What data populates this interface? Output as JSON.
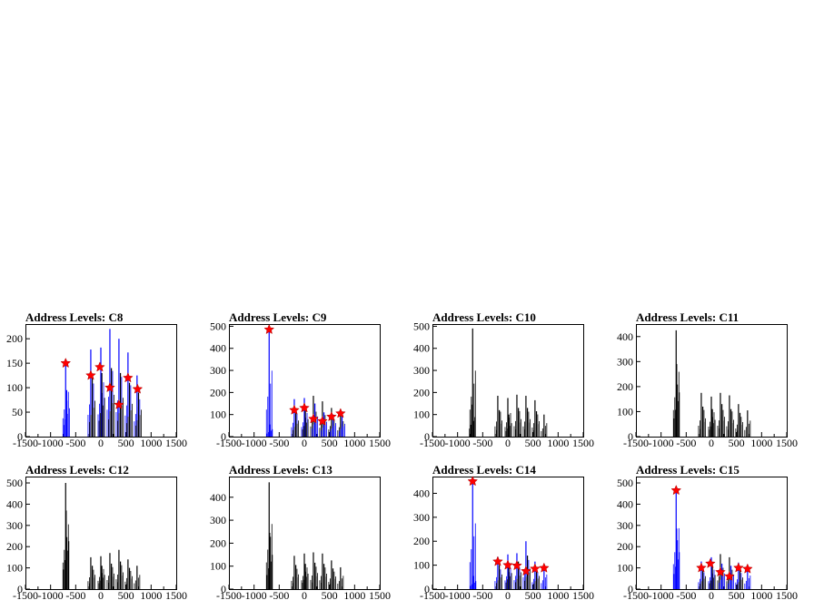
{
  "window": {
    "background": "#ffffff"
  },
  "colors": {
    "blue": "#0000ff",
    "black": "#000000",
    "marker": "#ff0000"
  },
  "x_axis": {
    "range": [
      -1500,
      1500
    ],
    "ticks": [
      -1500,
      -1000,
      -500,
      0,
      500,
      1000,
      1500
    ],
    "tick_labels": [
      "-1500",
      "-1000",
      "-500",
      "0",
      "500",
      "1000",
      "1500"
    ]
  },
  "chart_data": [
    {
      "type": "histogram",
      "title": "Address Levels: C8",
      "xlim": [
        -1500,
        1500
      ],
      "ylim": [
        0,
        230
      ],
      "yticks": [
        0,
        50,
        100,
        150,
        200
      ],
      "peaks": [
        {
          "x": -700,
          "y": 150,
          "color": "blue"
        },
        {
          "x": -680,
          "y": 95,
          "color": "blue"
        },
        {
          "x": -200,
          "y": 178,
          "color": "blue"
        },
        {
          "x": -170,
          "y": 120,
          "color": "black"
        },
        {
          "x": 0,
          "y": 182,
          "color": "blue"
        },
        {
          "x": 20,
          "y": 130,
          "color": "black"
        },
        {
          "x": 180,
          "y": 220,
          "color": "blue"
        },
        {
          "x": 210,
          "y": 140,
          "color": "black"
        },
        {
          "x": 360,
          "y": 200,
          "color": "blue"
        },
        {
          "x": 390,
          "y": 130,
          "color": "black"
        },
        {
          "x": 540,
          "y": 172,
          "color": "blue"
        },
        {
          "x": 570,
          "y": 110,
          "color": "black"
        },
        {
          "x": 720,
          "y": 125,
          "color": "blue"
        },
        {
          "x": 750,
          "y": 90,
          "color": "black"
        }
      ],
      "markers": [
        {
          "x": -700,
          "y": 150
        },
        {
          "x": -200,
          "y": 125
        },
        {
          "x": -20,
          "y": 142
        },
        {
          "x": 180,
          "y": 100
        },
        {
          "x": 360,
          "y": 65
        },
        {
          "x": 540,
          "y": 120
        },
        {
          "x": 730,
          "y": 97
        }
      ]
    },
    {
      "type": "histogram",
      "title": "Address Levels: C9",
      "xlim": [
        -1500,
        1500
      ],
      "ylim": [
        0,
        510
      ],
      "yticks": [
        0,
        100,
        200,
        300,
        400,
        500
      ],
      "peaks": [
        {
          "x": -700,
          "y": 490,
          "color": "blue"
        },
        {
          "x": -690,
          "y": 55,
          "color": "blue"
        },
        {
          "x": -200,
          "y": 170,
          "color": "blue"
        },
        {
          "x": -170,
          "y": 120,
          "color": "black"
        },
        {
          "x": 0,
          "y": 175,
          "color": "blue"
        },
        {
          "x": 20,
          "y": 130,
          "color": "black"
        },
        {
          "x": 180,
          "y": 185,
          "color": "black"
        },
        {
          "x": 210,
          "y": 150,
          "color": "blue"
        },
        {
          "x": 360,
          "y": 160,
          "color": "black"
        },
        {
          "x": 390,
          "y": 110,
          "color": "blue"
        },
        {
          "x": 540,
          "y": 130,
          "color": "black"
        },
        {
          "x": 570,
          "y": 100,
          "color": "blue"
        },
        {
          "x": 720,
          "y": 115,
          "color": "black"
        },
        {
          "x": 750,
          "y": 95,
          "color": "blue"
        }
      ],
      "markers": [
        {
          "x": -700,
          "y": 485
        },
        {
          "x": -200,
          "y": 120
        },
        {
          "x": 0,
          "y": 130
        },
        {
          "x": 180,
          "y": 80
        },
        {
          "x": 360,
          "y": 70
        },
        {
          "x": 540,
          "y": 90
        },
        {
          "x": 720,
          "y": 105
        }
      ]
    },
    {
      "type": "histogram",
      "title": "Address Levels: C10",
      "xlim": [
        -1500,
        1500
      ],
      "ylim": [
        0,
        510
      ],
      "yticks": [
        0,
        100,
        200,
        300,
        400,
        500
      ],
      "peaks": [
        {
          "x": -700,
          "y": 490,
          "color": "black"
        },
        {
          "x": -710,
          "y": 145,
          "color": "black"
        },
        {
          "x": -200,
          "y": 185,
          "color": "black"
        },
        {
          "x": -170,
          "y": 120,
          "color": "black"
        },
        {
          "x": 0,
          "y": 175,
          "color": "black"
        },
        {
          "x": 20,
          "y": 100,
          "color": "black"
        },
        {
          "x": 180,
          "y": 190,
          "color": "black"
        },
        {
          "x": 210,
          "y": 130,
          "color": "black"
        },
        {
          "x": 360,
          "y": 185,
          "color": "black"
        },
        {
          "x": 390,
          "y": 130,
          "color": "black"
        },
        {
          "x": 540,
          "y": 165,
          "color": "black"
        },
        {
          "x": 570,
          "y": 115,
          "color": "black"
        },
        {
          "x": 720,
          "y": 100,
          "color": "black"
        }
      ],
      "markers": []
    },
    {
      "type": "histogram",
      "title": "Address Levels: C11",
      "xlim": [
        -1500,
        1500
      ],
      "ylim": [
        0,
        450
      ],
      "yticks": [
        0,
        100,
        200,
        300,
        400
      ],
      "peaks": [
        {
          "x": -700,
          "y": 425,
          "color": "black"
        },
        {
          "x": -690,
          "y": 290,
          "color": "black"
        },
        {
          "x": -200,
          "y": 175,
          "color": "black"
        },
        {
          "x": -170,
          "y": 120,
          "color": "black"
        },
        {
          "x": 0,
          "y": 160,
          "color": "black"
        },
        {
          "x": 20,
          "y": 110,
          "color": "black"
        },
        {
          "x": 180,
          "y": 175,
          "color": "black"
        },
        {
          "x": 210,
          "y": 130,
          "color": "black"
        },
        {
          "x": 360,
          "y": 165,
          "color": "black"
        },
        {
          "x": 390,
          "y": 110,
          "color": "black"
        },
        {
          "x": 540,
          "y": 130,
          "color": "black"
        },
        {
          "x": 570,
          "y": 95,
          "color": "black"
        },
        {
          "x": 720,
          "y": 105,
          "color": "black"
        }
      ],
      "markers": []
    },
    {
      "type": "histogram",
      "title": "Address Levels: C12",
      "xlim": [
        -1500,
        1500
      ],
      "ylim": [
        0,
        530
      ],
      "yticks": [
        0,
        100,
        200,
        300,
        400,
        500
      ],
      "peaks": [
        {
          "x": -700,
          "y": 500,
          "color": "black"
        },
        {
          "x": -690,
          "y": 370,
          "color": "black"
        },
        {
          "x": -200,
          "y": 150,
          "color": "black"
        },
        {
          "x": -170,
          "y": 110,
          "color": "black"
        },
        {
          "x": 0,
          "y": 155,
          "color": "black"
        },
        {
          "x": 20,
          "y": 110,
          "color": "black"
        },
        {
          "x": 180,
          "y": 170,
          "color": "black"
        },
        {
          "x": 210,
          "y": 120,
          "color": "black"
        },
        {
          "x": 360,
          "y": 185,
          "color": "black"
        },
        {
          "x": 390,
          "y": 130,
          "color": "black"
        },
        {
          "x": 540,
          "y": 140,
          "color": "black"
        },
        {
          "x": 570,
          "y": 100,
          "color": "black"
        },
        {
          "x": 720,
          "y": 110,
          "color": "black"
        }
      ],
      "markers": []
    },
    {
      "type": "histogram",
      "title": "Address Levels: C13",
      "xlim": [
        -1500,
        1500
      ],
      "ylim": [
        0,
        490
      ],
      "yticks": [
        0,
        100,
        200,
        300,
        400
      ],
      "peaks": [
        {
          "x": -700,
          "y": 465,
          "color": "black"
        },
        {
          "x": -690,
          "y": 245,
          "color": "black"
        },
        {
          "x": -200,
          "y": 145,
          "color": "black"
        },
        {
          "x": -170,
          "y": 105,
          "color": "black"
        },
        {
          "x": 0,
          "y": 155,
          "color": "black"
        },
        {
          "x": 20,
          "y": 110,
          "color": "black"
        },
        {
          "x": 180,
          "y": 160,
          "color": "black"
        },
        {
          "x": 210,
          "y": 115,
          "color": "black"
        },
        {
          "x": 360,
          "y": 155,
          "color": "black"
        },
        {
          "x": 390,
          "y": 110,
          "color": "black"
        },
        {
          "x": 540,
          "y": 125,
          "color": "black"
        },
        {
          "x": 570,
          "y": 90,
          "color": "black"
        },
        {
          "x": 720,
          "y": 95,
          "color": "black"
        }
      ],
      "markers": []
    },
    {
      "type": "histogram",
      "title": "Address Levels: C14",
      "xlim": [
        -1500,
        1500
      ],
      "ylim": [
        0,
        470
      ],
      "yticks": [
        0,
        100,
        200,
        300,
        400
      ],
      "peaks": [
        {
          "x": -700,
          "y": 450,
          "color": "blue"
        },
        {
          "x": -690,
          "y": 55,
          "color": "blue"
        },
        {
          "x": -200,
          "y": 135,
          "color": "blue"
        },
        {
          "x": -170,
          "y": 100,
          "color": "black"
        },
        {
          "x": 0,
          "y": 145,
          "color": "blue"
        },
        {
          "x": 20,
          "y": 110,
          "color": "black"
        },
        {
          "x": 180,
          "y": 150,
          "color": "blue"
        },
        {
          "x": 210,
          "y": 115,
          "color": "black"
        },
        {
          "x": 360,
          "y": 200,
          "color": "blue"
        },
        {
          "x": 390,
          "y": 140,
          "color": "black"
        },
        {
          "x": 540,
          "y": 115,
          "color": "blue"
        },
        {
          "x": 570,
          "y": 90,
          "color": "black"
        },
        {
          "x": 720,
          "y": 100,
          "color": "blue"
        }
      ],
      "markers": [
        {
          "x": -700,
          "y": 450
        },
        {
          "x": -200,
          "y": 115
        },
        {
          "x": 0,
          "y": 100
        },
        {
          "x": 180,
          "y": 98
        },
        {
          "x": 360,
          "y": 75
        },
        {
          "x": 540,
          "y": 85
        },
        {
          "x": 720,
          "y": 88
        }
      ]
    },
    {
      "type": "histogram",
      "title": "Address Levels: C15",
      "xlim": [
        -1500,
        1500
      ],
      "ylim": [
        0,
        530
      ],
      "yticks": [
        0,
        100,
        200,
        300,
        400,
        500
      ],
      "peaks": [
        {
          "x": -700,
          "y": 470,
          "color": "blue"
        },
        {
          "x": -690,
          "y": 285,
          "color": "blue"
        },
        {
          "x": -200,
          "y": 130,
          "color": "blue"
        },
        {
          "x": -170,
          "y": 100,
          "color": "black"
        },
        {
          "x": 0,
          "y": 150,
          "color": "blue"
        },
        {
          "x": 20,
          "y": 110,
          "color": "black"
        },
        {
          "x": 180,
          "y": 165,
          "color": "black"
        },
        {
          "x": 210,
          "y": 120,
          "color": "blue"
        },
        {
          "x": 360,
          "y": 150,
          "color": "black"
        },
        {
          "x": 390,
          "y": 110,
          "color": "blue"
        },
        {
          "x": 540,
          "y": 125,
          "color": "blue"
        },
        {
          "x": 570,
          "y": 90,
          "color": "black"
        },
        {
          "x": 720,
          "y": 105,
          "color": "blue"
        }
      ],
      "markers": [
        {
          "x": -700,
          "y": 465
        },
        {
          "x": -200,
          "y": 100
        },
        {
          "x": -20,
          "y": 120
        },
        {
          "x": 180,
          "y": 80
        },
        {
          "x": 360,
          "y": 60
        },
        {
          "x": 540,
          "y": 100
        },
        {
          "x": 720,
          "y": 95
        }
      ]
    }
  ]
}
